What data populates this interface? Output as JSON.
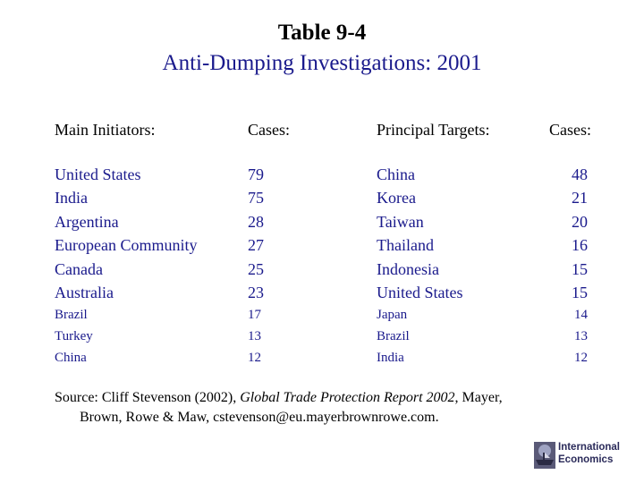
{
  "title": "Table 9-4",
  "subtitle": "Anti-Dumping Investigations: 2001",
  "headers": {
    "initiators": "Main Initiators:",
    "cases1": "Cases:",
    "targets": "Principal Targets:",
    "cases2": "Cases:"
  },
  "initiators": [
    {
      "name": "United States",
      "cases": "79"
    },
    {
      "name": "India",
      "cases": "75"
    },
    {
      "name": "Argentina",
      "cases": "28"
    },
    {
      "name": "European Community",
      "cases": "27"
    },
    {
      "name": "Canada",
      "cases": "25"
    },
    {
      "name": "Australia",
      "cases": "23"
    },
    {
      "name": "Brazil",
      "cases": "17"
    },
    {
      "name": "Turkey",
      "cases": "13"
    },
    {
      "name": "China",
      "cases": "12"
    }
  ],
  "targets": [
    {
      "name": "China",
      "cases": "48"
    },
    {
      "name": "Korea",
      "cases": "21"
    },
    {
      "name": "Taiwan",
      "cases": "20"
    },
    {
      "name": "Thailand",
      "cases": "16"
    },
    {
      "name": "Indonesia",
      "cases": "15"
    },
    {
      "name": "United States",
      "cases": "15"
    },
    {
      "name": "Japan",
      "cases": "14"
    },
    {
      "name": "Brazil",
      "cases": "13"
    },
    {
      "name": "India",
      "cases": "12"
    }
  ],
  "source": {
    "prefix": "Source: Cliff Stevenson (2002), ",
    "italic": "Global Trade Protection Report 2002",
    "suffix": ", Mayer,",
    "line2": "Brown, Rowe & Maw, cstevenson@eu.mayerbrownrowe.com."
  },
  "logo": {
    "line1": "International",
    "line2": "Economics"
  }
}
